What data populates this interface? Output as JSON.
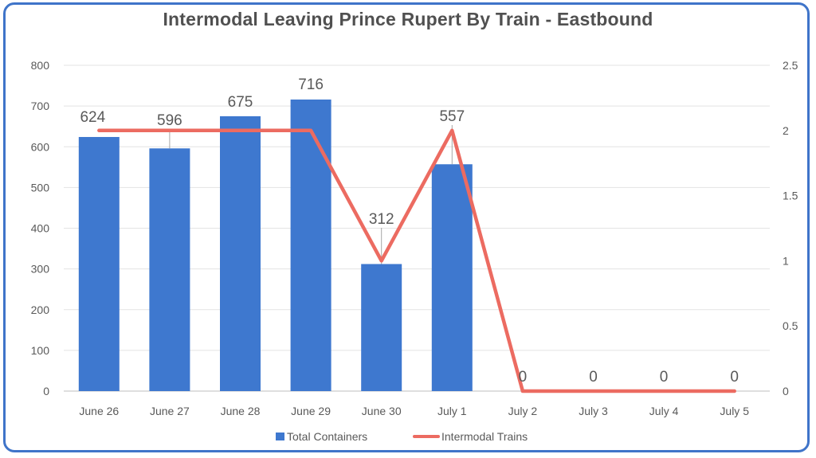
{
  "chart_data": {
    "type": "bar+line",
    "title": "Intermodal Leaving Prince Rupert By Train - Eastbound",
    "categories": [
      "June 26",
      "June 27",
      "June 28",
      "June 29",
      "June 30",
      "July 1",
      "July 2",
      "July 3",
      "July 4",
      "July 5"
    ],
    "series": [
      {
        "name": "Total Containers",
        "type": "bar",
        "axis": "left",
        "color": "#3e78cf",
        "values": [
          624,
          596,
          675,
          716,
          312,
          557,
          0,
          0,
          0,
          0
        ],
        "data_labels": [
          "624",
          "596",
          "675",
          "716",
          "312",
          "557",
          "0",
          "0",
          "0",
          "0"
        ]
      },
      {
        "name": "Intermodal Trains",
        "type": "line",
        "axis": "right",
        "color": "#ec6b61",
        "values": [
          2,
          2,
          2,
          2,
          1,
          2,
          0,
          0,
          0,
          0
        ]
      }
    ],
    "y_left": {
      "ylim": [
        0,
        800
      ],
      "ticks": [
        "0",
        "100",
        "200",
        "300",
        "400",
        "500",
        "600",
        "700",
        "800"
      ]
    },
    "y_right": {
      "ylim": [
        0,
        2.5
      ],
      "ticks": [
        "0",
        "0.5",
        "1",
        "1.5",
        "2",
        "2.5"
      ]
    },
    "grid": true,
    "legend": "bottom"
  }
}
